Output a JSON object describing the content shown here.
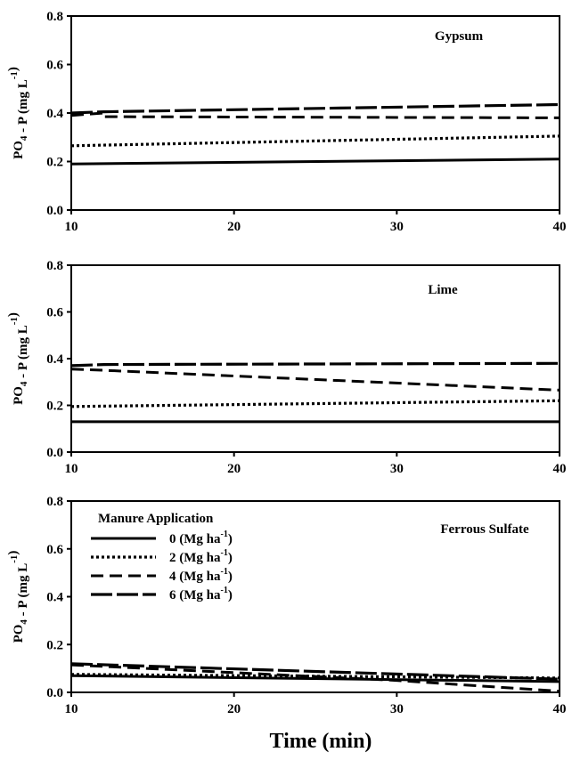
{
  "figure": {
    "x_axis_title": "Time (min)"
  },
  "chart_data": [
    {
      "type": "line",
      "title": "Gypsum",
      "ylabel_main": "PO",
      "ylabel_sub": "4",
      "ylabel_mid": " - P (mg L",
      "ylabel_sup": "-1",
      "ylabel_end": ")",
      "xlim": [
        10,
        40
      ],
      "ylim": [
        0,
        0.8
      ],
      "xticks": [
        "10",
        "20",
        "30",
        "40"
      ],
      "yticks": [
        "0.0",
        "0.2",
        "0.4",
        "0.6",
        "0.8"
      ],
      "series": [
        {
          "style": "solid",
          "points": [
            [
              10,
              0.19
            ],
            [
              40,
              0.21
            ]
          ]
        },
        {
          "style": "dotted",
          "points": [
            [
              10,
              0.265
            ],
            [
              40,
              0.305
            ]
          ]
        },
        {
          "style": "dashed",
          "points": [
            [
              10,
              0.39
            ],
            [
              12,
              0.4
            ],
            [
              12,
              0.385
            ],
            [
              40,
              0.38
            ]
          ]
        },
        {
          "style": "longdash",
          "points": [
            [
              10,
              0.4
            ],
            [
              12,
              0.405
            ],
            [
              40,
              0.435
            ]
          ]
        }
      ]
    },
    {
      "type": "line",
      "title": "Lime",
      "ylabel_main": "PO",
      "ylabel_sub": "4",
      "ylabel_mid": " - P (mg L",
      "ylabel_sup": "-1",
      "ylabel_end": ")",
      "xlim": [
        10,
        40
      ],
      "ylim": [
        0,
        0.8
      ],
      "xticks": [
        "10",
        "20",
        "30",
        "40"
      ],
      "yticks": [
        "0.0",
        "0.2",
        "0.4",
        "0.6",
        "0.8"
      ],
      "series": [
        {
          "style": "solid",
          "points": [
            [
              10,
              0.13
            ],
            [
              40,
              0.13
            ]
          ]
        },
        {
          "style": "dotted",
          "points": [
            [
              10,
              0.195
            ],
            [
              40,
              0.22
            ]
          ]
        },
        {
          "style": "dashed",
          "points": [
            [
              10,
              0.355
            ],
            [
              12,
              0.35
            ],
            [
              40,
              0.265
            ]
          ]
        },
        {
          "style": "longdash",
          "points": [
            [
              10,
              0.37
            ],
            [
              12,
              0.375
            ],
            [
              40,
              0.38
            ]
          ]
        }
      ]
    },
    {
      "type": "line",
      "title": "Ferrous Sulfate",
      "ylabel_main": "PO",
      "ylabel_sub": "4",
      "ylabel_mid": " - P (mg L",
      "ylabel_sup": "-1",
      "ylabel_end": ")",
      "xlim": [
        10,
        40
      ],
      "ylim": [
        0,
        0.8
      ],
      "xticks": [
        "10",
        "20",
        "30",
        "40"
      ],
      "yticks": [
        "0.0",
        "0.2",
        "0.4",
        "0.6",
        "0.8"
      ],
      "legend": {
        "title": "Manure Application",
        "placement": "top-left",
        "entries": [
          {
            "label": "0 (Mg ha",
            "sup": "-1",
            "end": ")",
            "style": "solid"
          },
          {
            "label": "2 (Mg ha",
            "sup": "-1",
            "end": ")",
            "style": "dotted"
          },
          {
            "label": "4 (Mg ha",
            "sup": "-1",
            "end": ")",
            "style": "dashed"
          },
          {
            "label": "6 (Mg ha",
            "sup": "-1",
            "end": ")",
            "style": "longdash"
          }
        ]
      },
      "series": [
        {
          "style": "solid",
          "points": [
            [
              10,
              0.07
            ],
            [
              40,
              0.045
            ]
          ]
        },
        {
          "style": "dotted",
          "points": [
            [
              10,
              0.075
            ],
            [
              40,
              0.06
            ]
          ]
        },
        {
          "style": "dashed",
          "points": [
            [
              10,
              0.115
            ],
            [
              30,
              0.05
            ],
            [
              40,
              0.005
            ]
          ]
        },
        {
          "style": "longdash",
          "points": [
            [
              10,
              0.12
            ],
            [
              40,
              0.055
            ]
          ]
        }
      ]
    }
  ]
}
